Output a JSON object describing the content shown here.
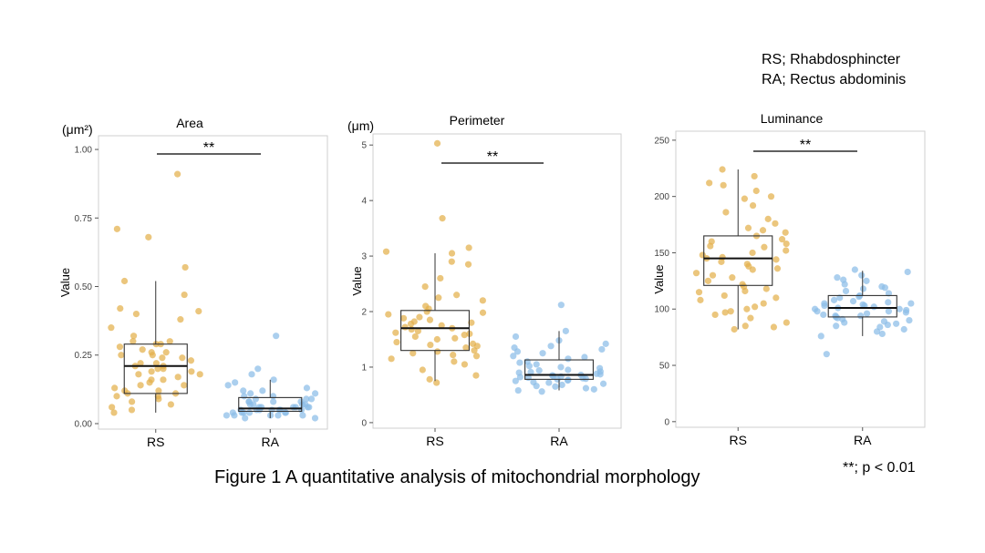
{
  "legend": {
    "rs_line": "RS; Rhabdosphincter",
    "ra_line": "RA; Rectus abdominis"
  },
  "caption": "Figure 1  A quantitative analysis of mitochondrial morphology",
  "significance_note": "**; p < 0.01",
  "colors": {
    "RS": "#e3b04b",
    "RA": "#8bbde8"
  },
  "chart_data": [
    {
      "type": "box",
      "title": "Area",
      "unit_label": "(μm²)",
      "ylabel": "Value",
      "categories": [
        "RS",
        "RA"
      ],
      "ylim": [
        -0.02,
        1.05
      ],
      "yticks": [
        0.0,
        0.25,
        0.5,
        0.75,
        1.0
      ],
      "ytick_labels": [
        "0.00",
        "0.25",
        "0.50",
        "0.75",
        "1.00"
      ],
      "boxes": [
        {
          "name": "RS",
          "q1": 0.11,
          "median": 0.21,
          "q3": 0.29,
          "whisker_low": 0.04,
          "whisker_high": 0.52
        },
        {
          "name": "RA",
          "q1": 0.045,
          "median": 0.055,
          "q3": 0.095,
          "whisker_low": 0.02,
          "whisker_high": 0.16
        }
      ],
      "points": [
        [
          0.91,
          0.71,
          0.68,
          0.57,
          0.52,
          0.47,
          0.42,
          0.41,
          0.4,
          0.38,
          0.35,
          0.32,
          0.3,
          0.29,
          0.28,
          0.27,
          0.26,
          0.26,
          0.25,
          0.25,
          0.24,
          0.23,
          0.22,
          0.22,
          0.21,
          0.21,
          0.2,
          0.2,
          0.19,
          0.18,
          0.18,
          0.17,
          0.16,
          0.16,
          0.15,
          0.14,
          0.13,
          0.12,
          0.12,
          0.11,
          0.11,
          0.1,
          0.1,
          0.09,
          0.08,
          0.07,
          0.06,
          0.05,
          0.04,
          0.3,
          0.29,
          0.24,
          0.19,
          0.14
        ],
        [
          0.32,
          0.2,
          0.18,
          0.16,
          0.15,
          0.14,
          0.13,
          0.12,
          0.12,
          0.11,
          0.1,
          0.1,
          0.09,
          0.09,
          0.08,
          0.08,
          0.08,
          0.07,
          0.07,
          0.07,
          0.06,
          0.06,
          0.06,
          0.06,
          0.05,
          0.05,
          0.05,
          0.05,
          0.05,
          0.04,
          0.04,
          0.04,
          0.04,
          0.04,
          0.03,
          0.03,
          0.03,
          0.03,
          0.02,
          0.02,
          0.06,
          0.07,
          0.05,
          0.09,
          0.11,
          0.04,
          0.05,
          0.03,
          0.06,
          0.08
        ]
      ],
      "significance": "**"
    },
    {
      "type": "box",
      "title": "Perimeter",
      "unit_label": "(μm)",
      "ylabel": "Value",
      "categories": [
        "RS",
        "RA"
      ],
      "ylim": [
        -0.1,
        5.2
      ],
      "yticks": [
        0,
        1,
        2,
        3,
        4,
        5
      ],
      "ytick_labels": [
        "0",
        "1",
        "2",
        "3",
        "4",
        "5"
      ],
      "boxes": [
        {
          "name": "RS",
          "q1": 1.3,
          "median": 1.7,
          "q3": 2.02,
          "whisker_low": 0.75,
          "whisker_high": 3.05
        },
        {
          "name": "RA",
          "q1": 0.78,
          "median": 0.86,
          "q3": 1.13,
          "whisker_low": 0.58,
          "whisker_high": 1.65
        }
      ],
      "points": [
        [
          5.03,
          3.68,
          3.15,
          3.08,
          3.05,
          2.9,
          2.85,
          2.6,
          2.45,
          2.3,
          2.2,
          2.1,
          2.05,
          2.0,
          1.95,
          1.9,
          1.88,
          1.85,
          1.8,
          1.78,
          1.75,
          1.72,
          1.7,
          1.68,
          1.65,
          1.62,
          1.6,
          1.55,
          1.52,
          1.5,
          1.45,
          1.42,
          1.4,
          1.35,
          1.3,
          1.28,
          1.25,
          1.2,
          1.15,
          1.1,
          1.05,
          0.95,
          0.85,
          0.78,
          0.72,
          2.25,
          1.98,
          1.82,
          1.58,
          1.38,
          1.22
        ],
        [
          2.12,
          1.65,
          1.55,
          1.48,
          1.42,
          1.38,
          1.32,
          1.28,
          1.25,
          1.2,
          1.15,
          1.1,
          1.08,
          1.05,
          1.0,
          0.98,
          0.95,
          0.92,
          0.9,
          0.88,
          0.86,
          0.85,
          0.84,
          0.82,
          0.8,
          0.79,
          0.78,
          0.76,
          0.75,
          0.72,
          0.7,
          0.68,
          0.65,
          0.62,
          0.6,
          0.58,
          0.56,
          1.02,
          0.94,
          0.83,
          0.77,
          1.18,
          0.87,
          0.91,
          0.73,
          1.35,
          0.66,
          0.81
        ]
      ],
      "significance": "**"
    },
    {
      "type": "box",
      "title": "Luminance",
      "unit_label": "",
      "ylabel": "Value",
      "categories": [
        "RS",
        "RA"
      ],
      "ylim": [
        -5,
        258
      ],
      "yticks": [
        0,
        50,
        100,
        150,
        200,
        250
      ],
      "ytick_labels": [
        "0",
        "50",
        "100",
        "150",
        "200",
        "250"
      ],
      "boxes": [
        {
          "name": "RS",
          "q1": 121,
          "median": 145,
          "q3": 165,
          "whisker_low": 82,
          "whisker_high": 224
        },
        {
          "name": "RA",
          "q1": 93,
          "median": 101,
          "q3": 112,
          "whisker_low": 76,
          "whisker_high": 134
        }
      ],
      "points": [
        [
          224,
          218,
          212,
          210,
          205,
          200,
          198,
          192,
          186,
          180,
          176,
          172,
          168,
          165,
          162,
          160,
          158,
          155,
          152,
          150,
          148,
          146,
          145,
          144,
          142,
          140,
          138,
          135,
          132,
          130,
          128,
          125,
          122,
          120,
          118,
          115,
          112,
          110,
          108,
          105,
          102,
          100,
          98,
          95,
          92,
          88,
          85,
          84,
          82,
          170,
          156,
          136,
          116,
          97
        ],
        [
          135,
          133,
          130,
          128,
          125,
          122,
          120,
          118,
          116,
          114,
          112,
          110,
          108,
          107,
          106,
          105,
          104,
          103,
          102,
          101,
          100,
          99,
          98,
          97,
          96,
          95,
          94,
          93,
          92,
          91,
          90,
          89,
          88,
          86,
          85,
          84,
          82,
          80,
          78,
          76,
          60,
          111,
          103,
          98,
          94,
          119,
          105,
          87,
          100,
          126
        ]
      ],
      "significance": "**"
    }
  ]
}
